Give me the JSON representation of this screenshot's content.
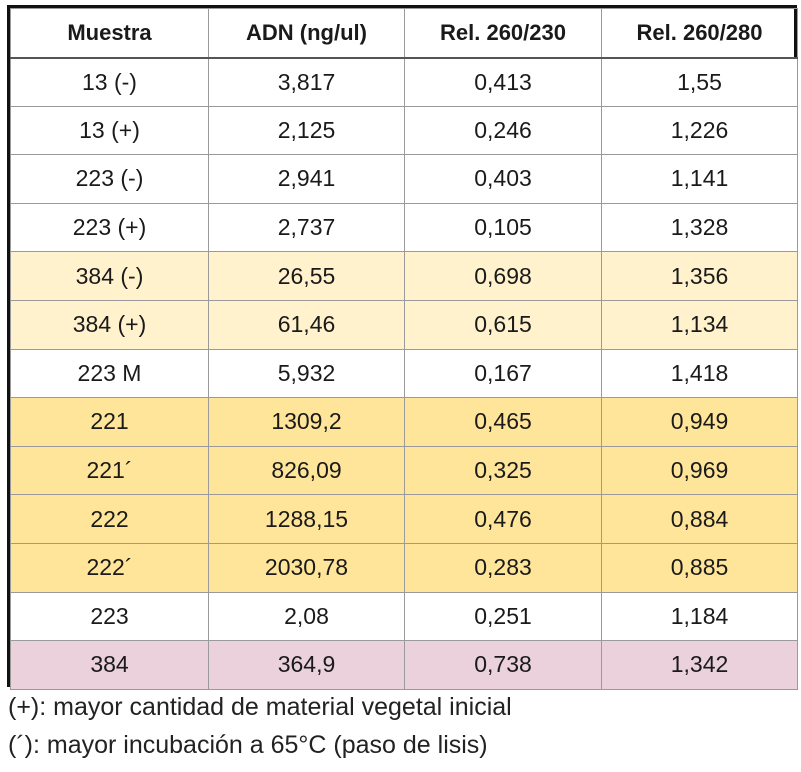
{
  "table": {
    "headers": [
      "Muestra",
      "ADN (ng/ul)",
      "Rel. 260/230",
      "Rel. 260/280"
    ],
    "rows": [
      {
        "cells": [
          "13 (-)",
          "3,817",
          "0,413",
          "1,55"
        ],
        "shade": "white"
      },
      {
        "cells": [
          "13 (+)",
          "2,125",
          "0,246",
          "1,226"
        ],
        "shade": "white"
      },
      {
        "cells": [
          "223 (-)",
          "2,941",
          "0,403",
          "1,141"
        ],
        "shade": "white"
      },
      {
        "cells": [
          "223 (+)",
          "2,737",
          "0,105",
          "1,328"
        ],
        "shade": "white"
      },
      {
        "cells": [
          "384 (-)",
          "26,55",
          "0,698",
          "1,356"
        ],
        "shade": "light"
      },
      {
        "cells": [
          "384 (+)",
          "61,46",
          "0,615",
          "1,134"
        ],
        "shade": "light"
      },
      {
        "cells": [
          "223 M",
          "5,932",
          "0,167",
          "1,418"
        ],
        "shade": "white"
      },
      {
        "cells": [
          "221",
          "1309,2",
          "0,465",
          "0,949"
        ],
        "shade": "gold"
      },
      {
        "cells": [
          "221´",
          "826,09",
          "0,325",
          "0,969"
        ],
        "shade": "gold"
      },
      {
        "cells": [
          "222",
          "1288,15",
          "0,476",
          "0,884"
        ],
        "shade": "gold"
      },
      {
        "cells": [
          "222´",
          "2030,78",
          "0,283",
          "0,885"
        ],
        "shade": "gold"
      },
      {
        "cells": [
          "223",
          "2,08",
          "0,251",
          "1,184"
        ],
        "shade": "white"
      },
      {
        "cells": [
          "384",
          "364,9",
          "0,738",
          "1,342"
        ],
        "shade": "pink"
      }
    ],
    "shade_colors": {
      "white": "#ffffff",
      "light": "#fff2cc",
      "gold": "#ffe599",
      "pink": "#ead1dc"
    }
  },
  "notes": [
    "(+): mayor cantidad de material vegetal inicial",
    "(´): mayor incubación a 65°C (paso de lisis)"
  ]
}
